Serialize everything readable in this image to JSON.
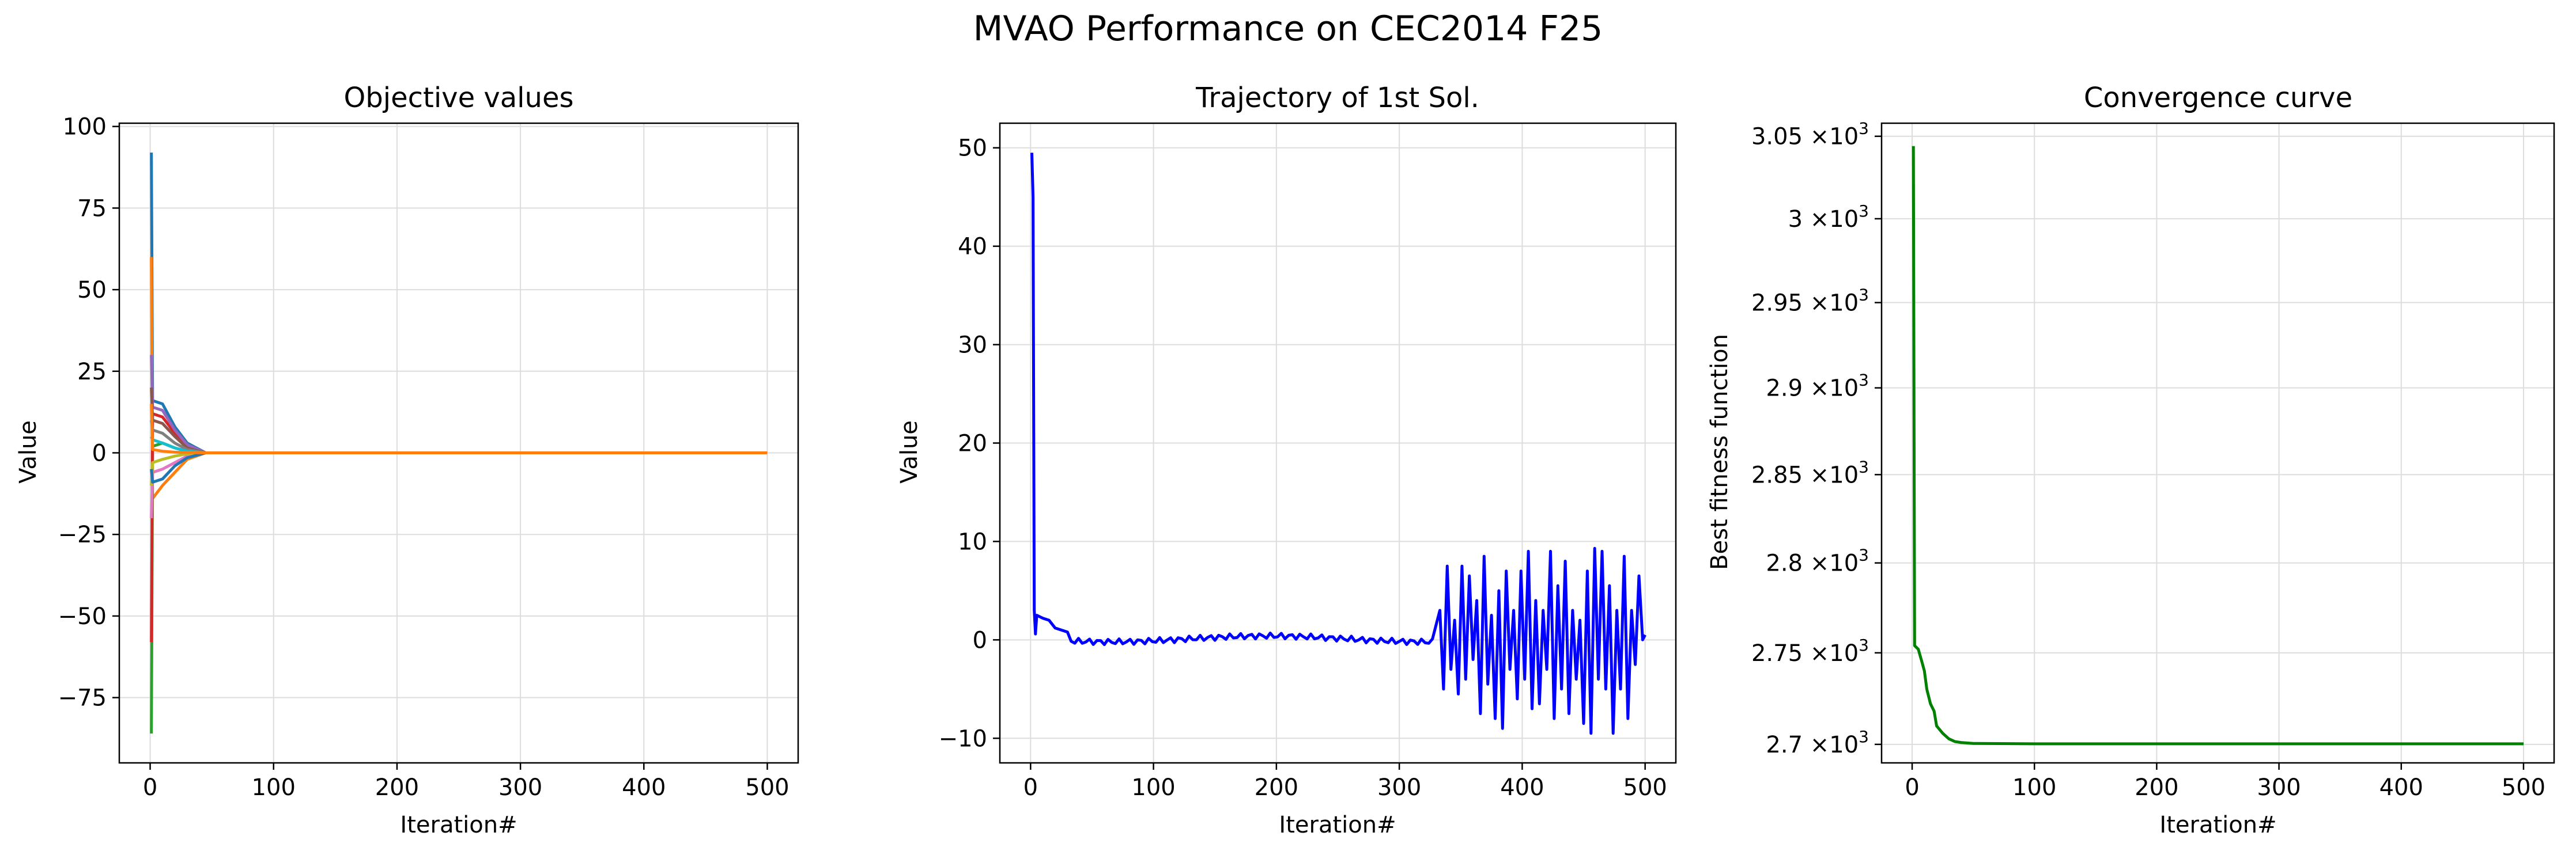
{
  "figure": {
    "title": "MVAO Performance on CEC2014 F25"
  },
  "colors": {
    "tab10": [
      "#1f77b4",
      "#ff7f0e",
      "#2ca02c",
      "#d62728",
      "#9467bd",
      "#8c564b",
      "#e377c2",
      "#7f7f7f",
      "#bcbd22",
      "#17becf"
    ],
    "trajectory": "#0000ff",
    "convergence": "#008000",
    "grid": "#dddddd"
  },
  "chart_data": [
    {
      "type": "line",
      "title": "Objective values",
      "xlabel": "Iteration#",
      "ylabel": "Value",
      "xlim": [
        -25,
        525
      ],
      "ylim": [
        -95,
        101
      ],
      "xticks": [
        0,
        100,
        200,
        300,
        400,
        500
      ],
      "yticks": [
        -75,
        -50,
        -25,
        0,
        25,
        50,
        75,
        100
      ],
      "grid": true,
      "legend": "none",
      "note_series": "many agents decaying to 0 by ~iteration 45",
      "series": [
        {
          "start": 92,
          "v2": 16,
          "v10": 15,
          "v20": 8,
          "v30": 3,
          "v45": 0
        },
        {
          "start": 60,
          "v2": -14,
          "v10": -10,
          "v20": -6,
          "v30": -2,
          "v45": 0
        },
        {
          "start": -86,
          "v2": 2,
          "v10": 3,
          "v20": 1.5,
          "v30": 0.5,
          "v45": 0
        },
        {
          "start": -58,
          "v2": 12,
          "v10": 11,
          "v20": 6,
          "v30": 2,
          "v45": 0
        },
        {
          "start": 30,
          "v2": 14,
          "v10": 13,
          "v20": 7,
          "v30": 2.5,
          "v45": 0
        },
        {
          "start": 20,
          "v2": 10,
          "v10": 9,
          "v20": 5,
          "v30": 1.5,
          "v45": 0
        },
        {
          "start": -20,
          "v2": -6,
          "v10": -5,
          "v20": -3,
          "v30": -1,
          "v45": 0
        },
        {
          "start": 10,
          "v2": 7,
          "v10": 6,
          "v20": 3,
          "v30": 1,
          "v45": 0
        },
        {
          "start": -10,
          "v2": -3,
          "v10": -2,
          "v20": -1,
          "v30": -0.3,
          "v45": 0
        },
        {
          "start": 5,
          "v2": 4,
          "v10": 3,
          "v20": 1.5,
          "v30": 0.5,
          "v45": 0
        },
        {
          "start": -5,
          "v2": -9,
          "v10": -8,
          "v20": -4,
          "v30": -1.5,
          "v45": 0
        },
        {
          "start": 15,
          "v2": 1,
          "v10": 0.5,
          "v20": 0.2,
          "v30": 0.1,
          "v45": 0
        }
      ]
    },
    {
      "type": "line",
      "title": "Trajectory of 1st Sol.",
      "xlabel": "Iteration#",
      "ylabel": "Value",
      "xlim": [
        -25,
        525
      ],
      "ylim": [
        -12.5,
        52.5
      ],
      "xticks": [
        0,
        100,
        200,
        300,
        400,
        500
      ],
      "yticks": [
        -10,
        0,
        10,
        20,
        30,
        40,
        50
      ],
      "grid": true,
      "legend": "none",
      "points_head": [
        [
          1,
          49.5
        ],
        [
          2,
          45
        ],
        [
          3,
          3
        ],
        [
          4,
          0.6
        ],
        [
          5,
          2.5
        ],
        [
          10,
          2.2
        ],
        [
          15,
          2.0
        ],
        [
          20,
          1.2
        ],
        [
          25,
          1.0
        ],
        [
          30,
          0.8
        ]
      ],
      "calm_range": [
        30,
        330
      ],
      "calm_amplitude": 0.6,
      "spikes": [
        [
          333,
          3
        ],
        [
          336,
          -5
        ],
        [
          339,
          7.5
        ],
        [
          342,
          -3
        ],
        [
          345,
          2
        ],
        [
          348,
          -5.5
        ],
        [
          351,
          7.5
        ],
        [
          354,
          -4
        ],
        [
          357,
          6.5
        ],
        [
          360,
          -2
        ],
        [
          363,
          4
        ],
        [
          366,
          -7.5
        ],
        [
          369,
          8.5
        ],
        [
          372,
          -4.5
        ],
        [
          375,
          2.5
        ],
        [
          378,
          -8
        ],
        [
          381,
          5
        ],
        [
          384,
          -9
        ],
        [
          387,
          7
        ],
        [
          390,
          -3
        ],
        [
          393,
          3
        ],
        [
          396,
          -6
        ],
        [
          399,
          7
        ],
        [
          402,
          -4
        ],
        [
          405,
          9
        ],
        [
          408,
          -7
        ],
        [
          411,
          4
        ],
        [
          414,
          -6.5
        ],
        [
          417,
          3
        ],
        [
          420,
          -3
        ],
        [
          423,
          9
        ],
        [
          426,
          -8
        ],
        [
          429,
          5.5
        ],
        [
          432,
          -5
        ],
        [
          435,
          8
        ],
        [
          438,
          -7.5
        ],
        [
          441,
          3
        ],
        [
          444,
          -4
        ],
        [
          447,
          2
        ],
        [
          450,
          -8.5
        ],
        [
          453,
          7
        ],
        [
          456,
          -9.5
        ],
        [
          459,
          9.3
        ],
        [
          462,
          -4
        ],
        [
          465,
          9
        ],
        [
          468,
          -5
        ],
        [
          471,
          5.5
        ],
        [
          474,
          -9.5
        ],
        [
          477,
          3
        ],
        [
          480,
          -5
        ],
        [
          483,
          8.5
        ],
        [
          486,
          -8
        ],
        [
          489,
          3
        ],
        [
          492,
          -2.5
        ],
        [
          495,
          6.5
        ],
        [
          498,
          0
        ],
        [
          500,
          0.5
        ]
      ]
    },
    {
      "type": "line",
      "title": "Convergence curve",
      "xlabel": "Iteration#",
      "ylabel": "Best fitness function",
      "xlim": [
        -25,
        525
      ],
      "ylim": [
        2690,
        3058
      ],
      "yscale": "log",
      "xticks": [
        0,
        100,
        200,
        300,
        400,
        500
      ],
      "ytick_values": [
        2700,
        2750,
        2800,
        2850,
        2900,
        2950,
        3000,
        3050
      ],
      "ytick_bases": [
        "2.7",
        "2.75",
        "2.8",
        "2.85",
        "2.9",
        "2.95",
        "3",
        "3.05"
      ],
      "ytick_base_suffix": "×10",
      "ytick_exponent": "3",
      "grid": true,
      "legend": "none",
      "points": [
        [
          1,
          3044
        ],
        [
          2,
          2754
        ],
        [
          5,
          2752
        ],
        [
          8,
          2745
        ],
        [
          10,
          2740
        ],
        [
          12,
          2730
        ],
        [
          15,
          2722
        ],
        [
          18,
          2718
        ],
        [
          20,
          2710
        ],
        [
          25,
          2706
        ],
        [
          30,
          2703
        ],
        [
          35,
          2701.5
        ],
        [
          40,
          2701
        ],
        [
          50,
          2700.5
        ],
        [
          100,
          2700.3
        ],
        [
          500,
          2700.3
        ]
      ]
    }
  ]
}
